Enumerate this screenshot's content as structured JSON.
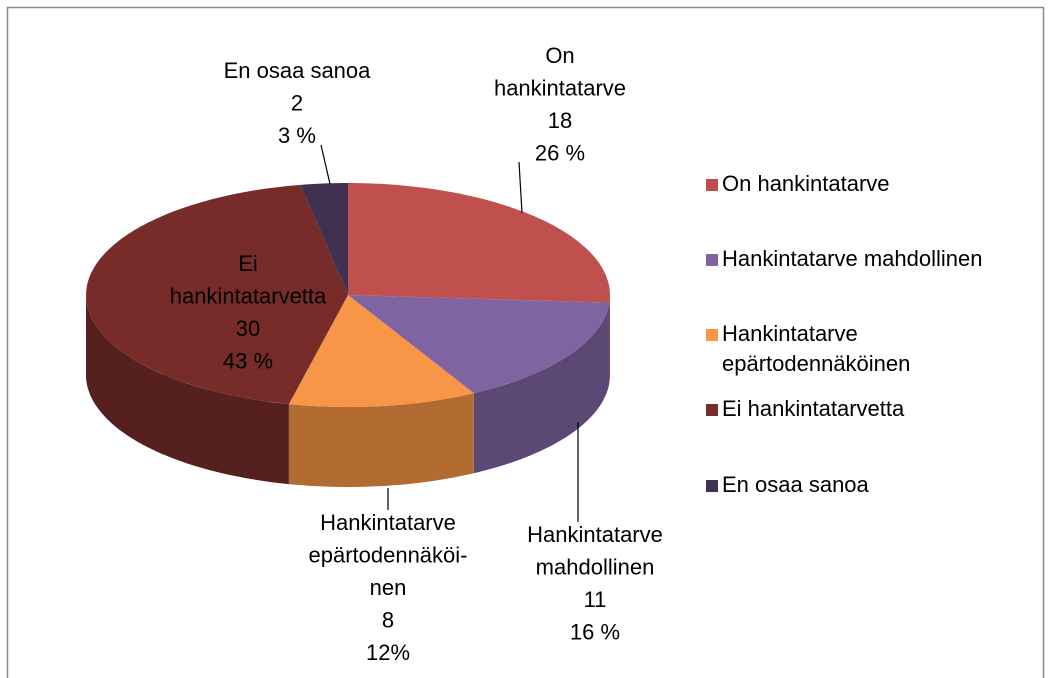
{
  "chart_data": {
    "type": "pie3d",
    "categories": [
      "On hankintatarve",
      "Hankintatarve mahdollinen",
      "Hankintatarve epärtodennäköinen",
      "Ei hankintatarvetta",
      "En osaa sanoa"
    ],
    "values": [
      18,
      11,
      8,
      30,
      2
    ],
    "percentages": [
      26,
      16,
      12,
      43,
      3
    ],
    "percentage_labels": [
      "26 %",
      "16 %",
      "12%",
      "43 %",
      "3 %"
    ],
    "slice_labels": [
      [
        "On",
        "hankintatarve"
      ],
      [
        "Hankintatarve",
        "mahdollinen"
      ],
      [
        "Hankintatarve",
        "epärtodennäköi-",
        "nen"
      ],
      [
        "Ei",
        "hankintatarvetta"
      ],
      [
        "En osaa sanoa"
      ]
    ],
    "colors": [
      "#c0504d",
      "#8064a2",
      "#f79646",
      "#772c2a",
      "#403152"
    ],
    "legend": "right"
  }
}
